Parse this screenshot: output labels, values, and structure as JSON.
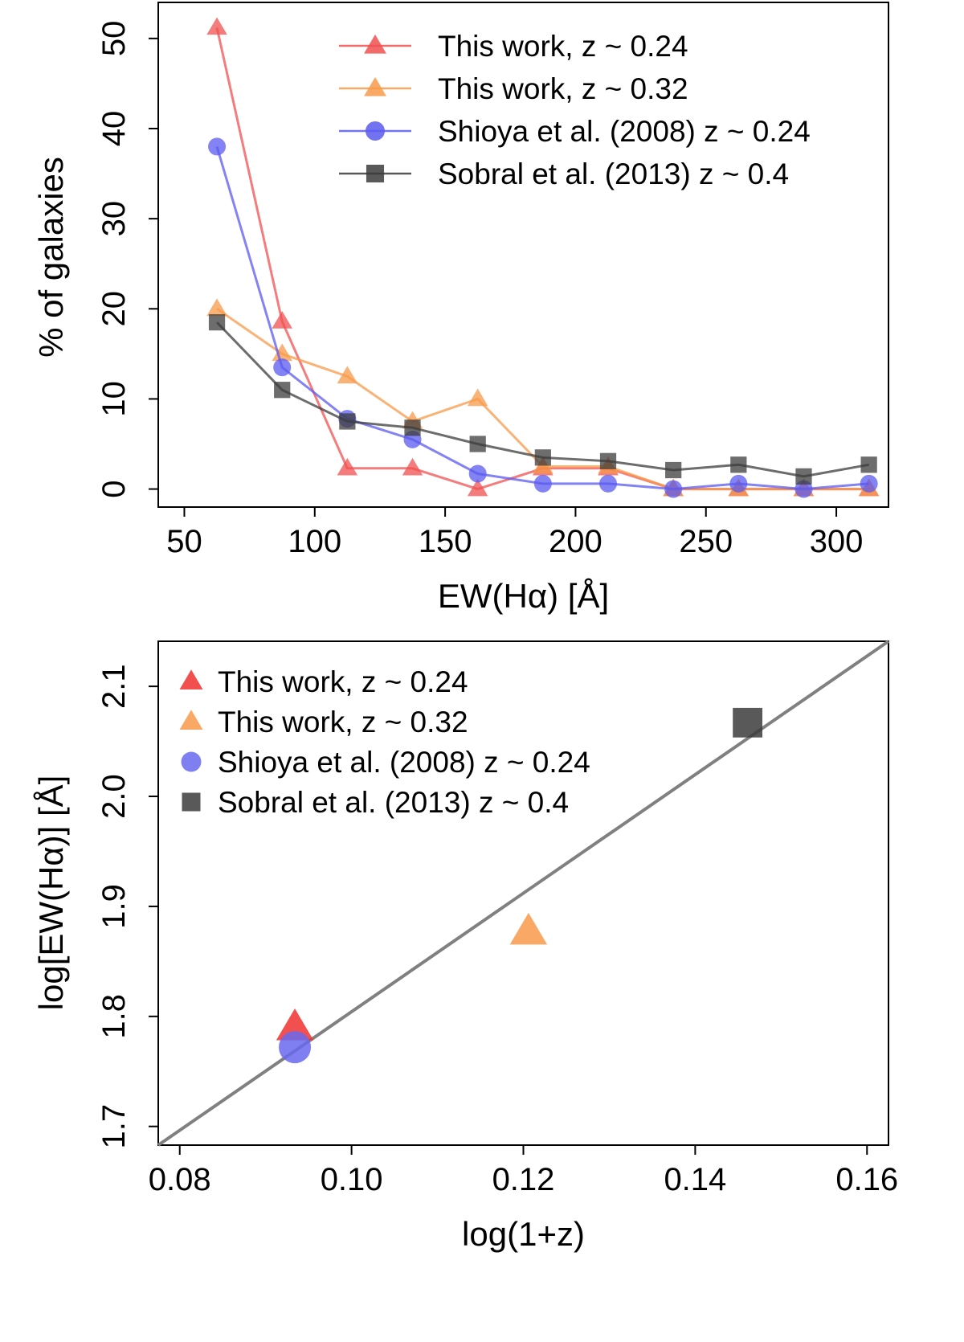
{
  "chart_data": [
    {
      "type": "line",
      "xlabel": "EW(Hα) [Å]",
      "ylabel": "% of galaxies",
      "xlim": [
        40,
        320
      ],
      "ylim": [
        -2,
        54
      ],
      "xticks": [
        50,
        100,
        150,
        200,
        250,
        300
      ],
      "yticks": [
        0,
        10,
        20,
        30,
        40,
        50
      ],
      "legend_position": "top-right",
      "x": [
        62.5,
        87.5,
        112.5,
        137.5,
        162.5,
        187.5,
        212.5,
        237.5,
        262.5,
        287.5,
        312.5
      ],
      "series": [
        {
          "name": "This work, z ~ 0.24",
          "color": "#f05050",
          "marker": "triangle",
          "values": [
            51.2,
            18.6,
            2.3,
            2.3,
            0,
            2.3,
            2.3,
            0,
            0,
            0,
            0
          ]
        },
        {
          "name": "This work, z ~ 0.32",
          "color": "#f89a4a",
          "marker": "triangle",
          "values": [
            20.0,
            15.0,
            12.5,
            7.5,
            10.0,
            2.5,
            2.5,
            0,
            0,
            0,
            0
          ]
        },
        {
          "name": "Shioya et al. (2008) z ~ 0.24",
          "color": "#5a5af0",
          "marker": "circle",
          "values": [
            38.0,
            13.5,
            7.8,
            5.5,
            1.7,
            0.6,
            0.6,
            0,
            0.6,
            0,
            0.6
          ]
        },
        {
          "name": "Sobral et al. (2013) z ~ 0.4",
          "color": "#3c3c3c",
          "marker": "square",
          "values": [
            18.5,
            11.0,
            7.5,
            6.8,
            5.0,
            3.5,
            3.1,
            2.1,
            2.7,
            1.4,
            2.7
          ]
        }
      ]
    },
    {
      "type": "scatter",
      "xlabel": "log(1+z)",
      "ylabel": "log[EW(Hα)] [Å]",
      "xlim": [
        0.0775,
        0.1625
      ],
      "ylim": [
        1.683,
        2.141
      ],
      "xticks": [
        0.08,
        0.1,
        0.12,
        0.14,
        0.16
      ],
      "yticks": [
        1.7,
        1.8,
        1.9,
        2.0,
        2.1
      ],
      "legend_position": "top-left",
      "fit_line": {
        "color": "#808080",
        "points": [
          [
            0.0775,
            1.683
          ],
          [
            0.1625,
            2.141
          ]
        ]
      },
      "series": [
        {
          "name": "This work, z ~ 0.24",
          "color": "#f03030",
          "marker": "triangle",
          "points": [
            [
              0.0934,
              1.79
            ]
          ]
        },
        {
          "name": "This work, z ~ 0.32",
          "color": "#f89a4a",
          "marker": "triangle",
          "points": [
            [
              0.1206,
              1.877
            ]
          ]
        },
        {
          "name": "Shioya et al. (2008) z ~ 0.24",
          "color": "#6868f0",
          "marker": "circle",
          "points": [
            [
              0.0934,
              1.772
            ]
          ]
        },
        {
          "name": "Sobral et al. (2013) z ~ 0.4",
          "color": "#3c3c3c",
          "marker": "square",
          "points": [
            [
              0.1461,
              2.067
            ]
          ]
        }
      ]
    }
  ]
}
